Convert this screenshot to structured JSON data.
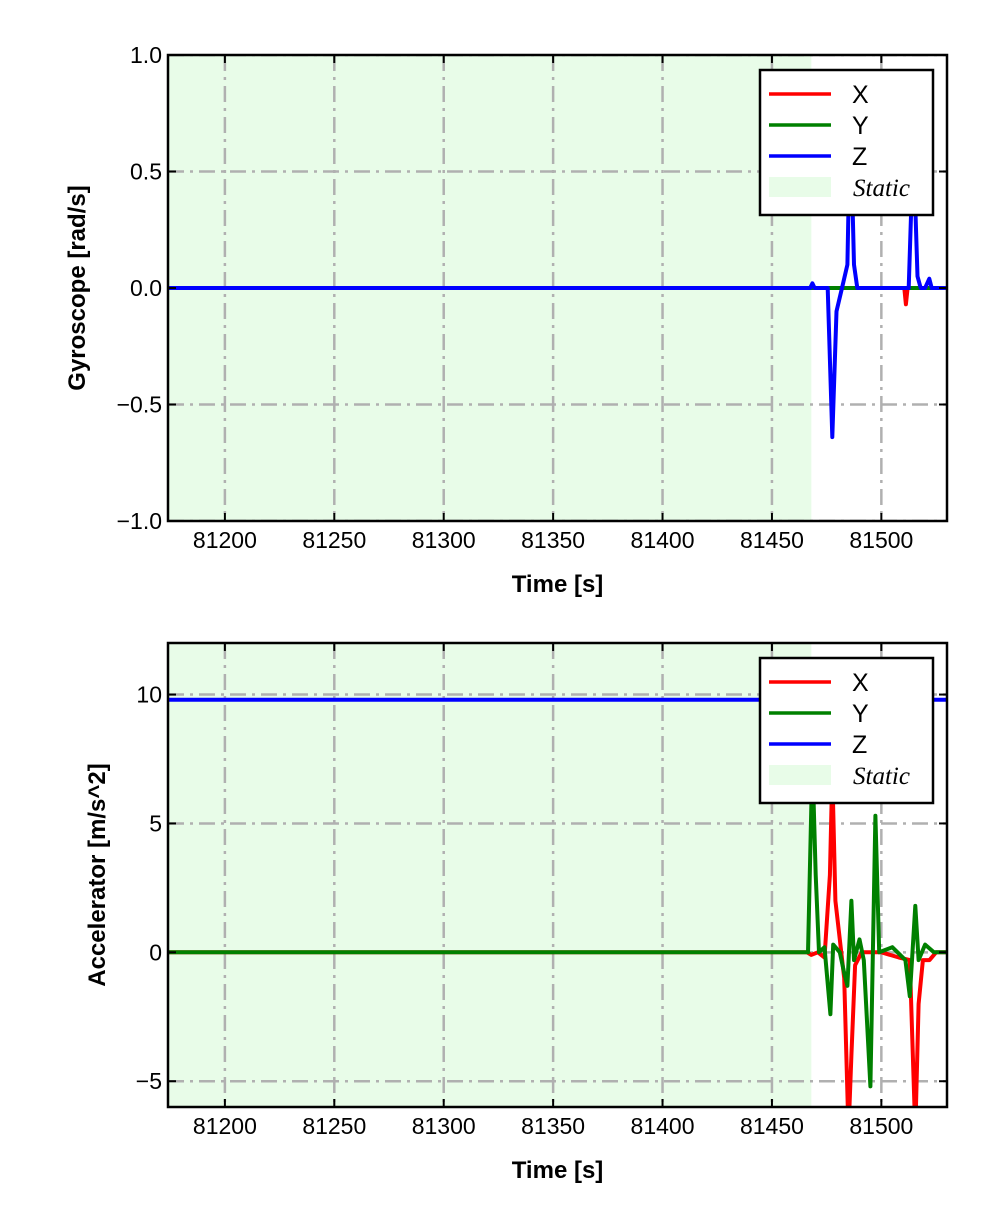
{
  "colors": {
    "X": "#ff0000",
    "Y": "#008000",
    "Z": "#0000ff",
    "static": "#e8fce8",
    "grid": "#b0b0b0"
  },
  "chart_data": [
    {
      "type": "line",
      "xlabel": "Time [s]",
      "ylabel": "Gyroscope [rad/s]",
      "xlim": [
        81174,
        81530
      ],
      "ylim": [
        -1.0,
        1.0
      ],
      "xticks": [
        81200,
        81250,
        81300,
        81350,
        81400,
        81450,
        81500
      ],
      "xtick_labels": [
        "81200",
        "81250",
        "81300",
        "81350",
        "81400",
        "81450",
        "81500"
      ],
      "yticks": [
        -1.0,
        -0.5,
        0.0,
        0.5,
        1.0
      ],
      "ytick_labels": [
        "−1.0",
        "−0.5",
        "0.0",
        "0.5",
        "1.0"
      ],
      "grid": true,
      "legend_position": "top-right",
      "legend": [
        "X",
        "Y",
        "Z",
        "Static"
      ],
      "static_region": [
        81174,
        81468
      ],
      "series": [
        {
          "name": "X",
          "points": [
            [
              81174,
              0
            ],
            [
              81510.5,
              0
            ],
            [
              81511.2,
              -0.07
            ],
            [
              81512,
              0
            ],
            [
              81530,
              0
            ]
          ]
        },
        {
          "name": "Y",
          "points": [
            [
              81174,
              0
            ],
            [
              81530,
              0
            ]
          ]
        },
        {
          "name": "Z",
          "points": [
            [
              81174,
              0
            ],
            [
              81467.5,
              0
            ],
            [
              81468.5,
              0.02
            ],
            [
              81469.5,
              0
            ],
            [
              81475.5,
              0
            ],
            [
              81477.6,
              -0.64
            ],
            [
              81479.5,
              -0.1
            ],
            [
              81482,
              0
            ],
            [
              81484.5,
              0.1
            ],
            [
              81485.8,
              0.75
            ],
            [
              81487.5,
              0.1
            ],
            [
              81489,
              0
            ],
            [
              81512.5,
              0
            ],
            [
              81514.6,
              0.62
            ],
            [
              81516.5,
              0.05
            ],
            [
              81518,
              0
            ],
            [
              81520,
              0
            ],
            [
              81521.9,
              0.04
            ],
            [
              81523,
              0
            ],
            [
              81530,
              0
            ]
          ]
        }
      ]
    },
    {
      "type": "line",
      "xlabel": "Time [s]",
      "ylabel": "Accelerator [m/s^2]",
      "xlim": [
        81174,
        81530
      ],
      "ylim": [
        -6,
        12
      ],
      "xticks": [
        81200,
        81250,
        81300,
        81350,
        81400,
        81450,
        81500
      ],
      "xtick_labels": [
        "81200",
        "81250",
        "81300",
        "81350",
        "81400",
        "81450",
        "81500"
      ],
      "yticks": [
        -5,
        0,
        5,
        10
      ],
      "ytick_labels": [
        "−5",
        "0",
        "5",
        "10"
      ],
      "grid": true,
      "legend_position": "top-right",
      "legend": [
        "X",
        "Y",
        "Z",
        "Static"
      ],
      "static_region": [
        81174,
        81468
      ],
      "series": [
        {
          "name": "X",
          "points": [
            [
              81174,
              0
            ],
            [
              81466,
              0
            ],
            [
              81468,
              -0.1
            ],
            [
              81471,
              0
            ],
            [
              81474,
              -0.2
            ],
            [
              81476.5,
              3
            ],
            [
              81477.6,
              7
            ],
            [
              81479,
              2
            ],
            [
              81481,
              0.5
            ],
            [
              81483,
              -1
            ],
            [
              81485,
              -7
            ],
            [
              81486.3,
              -4
            ],
            [
              81488,
              -0.5
            ],
            [
              81491,
              0
            ],
            [
              81500,
              0
            ],
            [
              81508,
              -0.2
            ],
            [
              81513,
              -0.3
            ],
            [
              81515.5,
              -7
            ],
            [
              81517,
              -2
            ],
            [
              81519,
              -0.3
            ],
            [
              81522,
              -0.3
            ],
            [
              81525,
              0
            ],
            [
              81530,
              0
            ]
          ]
        },
        {
          "name": "Y",
          "points": [
            [
              81174,
              0
            ],
            [
              81466.5,
              0
            ],
            [
              81468.5,
              7.5
            ],
            [
              81470,
              3
            ],
            [
              81471.5,
              0
            ],
            [
              81474,
              0.2
            ],
            [
              81476.7,
              -2.4
            ],
            [
              81478,
              0.3
            ],
            [
              81481,
              0
            ],
            [
              81483,
              -0.8
            ],
            [
              81484.5,
              -1.3
            ],
            [
              81486.3,
              2.0
            ],
            [
              81487.5,
              -0.3
            ],
            [
              81490,
              0.5
            ],
            [
              81492,
              -0.3
            ],
            [
              81495,
              -5.2
            ],
            [
              81497.3,
              5.3
            ],
            [
              81499,
              0
            ],
            [
              81505,
              0.2
            ],
            [
              81511,
              -0.3
            ],
            [
              81513,
              -1.7
            ],
            [
              81515.5,
              1.8
            ],
            [
              81517,
              -0.3
            ],
            [
              81520,
              0.3
            ],
            [
              81524,
              0
            ],
            [
              81530,
              0
            ]
          ]
        },
        {
          "name": "Z",
          "points": [
            [
              81174,
              9.8
            ],
            [
              81530,
              9.8
            ]
          ]
        }
      ]
    }
  ]
}
